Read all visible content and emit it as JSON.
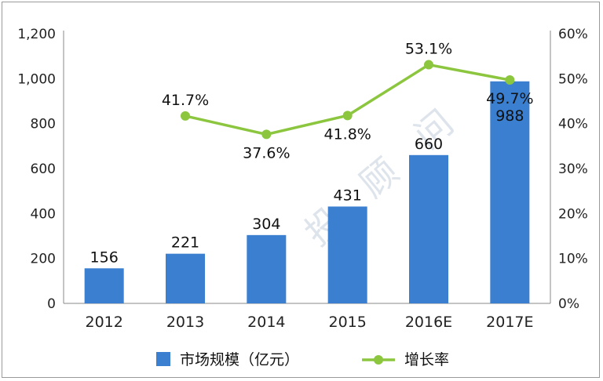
{
  "chart_data": {
    "type": "bar",
    "categories": [
      "2012",
      "2013",
      "2014",
      "2015",
      "2016E",
      "2017E"
    ],
    "series": [
      {
        "name": "市场规模（亿元）",
        "type": "bar",
        "axis": "left",
        "values": [
          156,
          221,
          304,
          431,
          660,
          988
        ],
        "labels": [
          "156",
          "221",
          "304",
          "431",
          "660",
          "988"
        ]
      },
      {
        "name": "增长率",
        "type": "line",
        "axis": "right",
        "values": [
          null,
          41.7,
          37.6,
          41.8,
          53.1,
          49.7
        ],
        "labels": [
          "",
          "41.7%",
          "37.6%",
          "41.8%",
          "53.1%",
          "49.7%"
        ]
      }
    ],
    "y_left": {
      "range": [
        0,
        1200
      ],
      "ticks": [
        0,
        200,
        400,
        600,
        800,
        1000,
        1200
      ],
      "tick_labels": [
        "0",
        "200",
        "400",
        "600",
        "800",
        "1,000",
        "1,200"
      ]
    },
    "y_right": {
      "range": [
        0,
        60
      ],
      "ticks": [
        0,
        10,
        20,
        30,
        40,
        50,
        60
      ],
      "tick_labels": [
        "0%",
        "10%",
        "20%",
        "30%",
        "40%",
        "50%",
        "60%"
      ]
    },
    "grid": false,
    "legend_position": "bottom",
    "watermark": "中投顾问"
  },
  "colors": {
    "bar": "#3a7fd0",
    "line": "#8cc63f",
    "axis": "#888888",
    "highlight_label": "#bfe9ff"
  }
}
